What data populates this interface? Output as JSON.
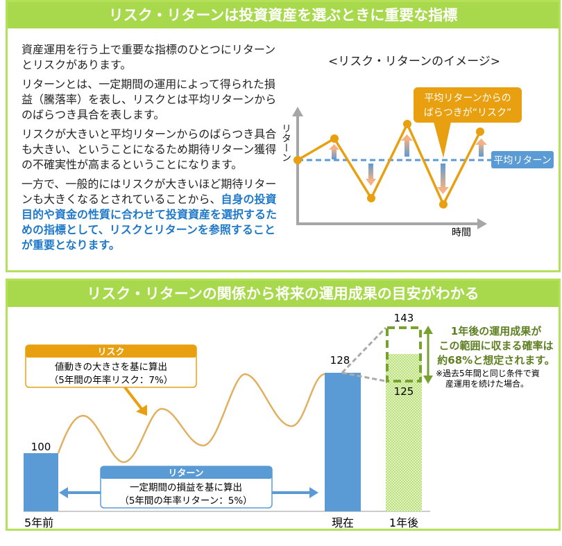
{
  "top": {
    "title": "リスク・リターンは投資資産を選ぶときに重要な指標",
    "paragraphs": [
      "資産運用を行う上で重要な指標のひとつにリターンとリスクがあります。",
      "リターンとは、一定期間の運用によって得られた損益（騰落率）を表し、リスクとは平均リターンからのばらつき具合を表します。",
      "リスクが大きいと平均リターンからのばらつき具合も大きい、ということになるため期待リターン獲得の不確実性が高まるということになります。"
    ],
    "paragraph4_normal": "一方で、一般的にはリスクが大きいほど期待リターンも大きくなるとされていることから、",
    "paragraph4_bold": "自身の投資目的や資金の性質に合わせて投資資産を選択するための指標として、リスクとリターンを参照することが重要となります。",
    "image": {
      "title": "<リスク・リターンのイメージ>",
      "y_axis": "リターン",
      "x_axis": "時間",
      "callout_line1": "平均リターンからの",
      "callout_line2": "ばらつきが“リスク”",
      "avg_label": "平均リターン"
    }
  },
  "bottom": {
    "title": "リスク・リターンの関係から将来の運用成果の目安がわかる",
    "risk": {
      "header": "リスク",
      "line1": "値動きの大きさを基に算出",
      "line2": "（5年間の年率リスク：7%）"
    },
    "return": {
      "header": "リターン",
      "line1": "一定期間の損益を基に算出",
      "line2": "（5年間の年率リターン：5%）"
    },
    "bars": [
      {
        "label": "5年前",
        "value": "100"
      },
      {
        "label": "現在",
        "value": "128"
      },
      {
        "label": "1年後",
        "upper": "143",
        "lower": "125"
      }
    ],
    "range_note": [
      "1年後の運用成果が",
      "この範囲に収まる確率は",
      "約68%と想定されます。"
    ],
    "footnote": [
      "※過去5年間と同じ条件で資",
      "産運用を続けた場合。"
    ]
  },
  "colors": {
    "header": "#A8D84C",
    "orange": "#E8A010",
    "blue": "#5B9BD5",
    "green": "#77A22F",
    "bold_text": "#1E78C8"
  }
}
